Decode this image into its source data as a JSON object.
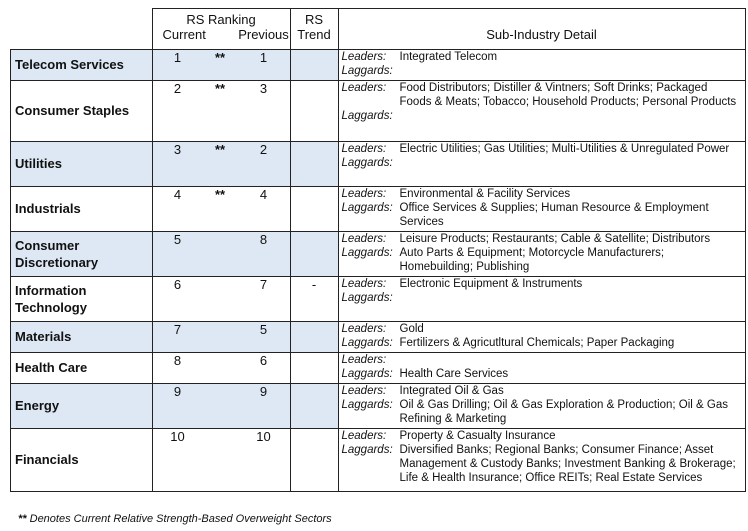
{
  "header": {
    "rs_ranking": "RS Ranking",
    "current": "Current",
    "previous": "Previous",
    "rs_trend_1": "RS",
    "rs_trend_2": "Trend",
    "sub_industry": "Sub-Industry Detail"
  },
  "labels": {
    "leaders": "Leaders:",
    "laggards": "Laggards:"
  },
  "rows": [
    {
      "sector": "Telecom Services",
      "current": "1",
      "star": "**",
      "previous": "1",
      "trend": "",
      "leaders": "Integrated Telecom",
      "laggards": ""
    },
    {
      "sector": "Consumer Staples",
      "current": "2",
      "star": "**",
      "previous": "3",
      "trend": "",
      "leaders": "Food Distributors; Distiller & Vintners; Soft Drinks; Packaged Foods & Meats; Tobacco; Household Products; Personal Products",
      "laggards": ""
    },
    {
      "sector": "Utilities",
      "current": "3",
      "star": "**",
      "previous": "2",
      "trend": "",
      "leaders": "Electric Utilities; Gas Utilities; Multi-Utilities & Unregulated Power",
      "laggards": ""
    },
    {
      "sector": "Industrials",
      "current": "4",
      "star": "**",
      "previous": "4",
      "trend": "",
      "leaders": "Environmental & Facility Services",
      "laggards": "Office Services & Supplies; Human Resource & Employment Services"
    },
    {
      "sector": "Consumer Discretionary",
      "current": "5",
      "star": "",
      "previous": "8",
      "trend": "",
      "leaders": "Leisure Products; Restaurants; Cable & Satellite; Distributors",
      "laggards": "Auto Parts & Equipment; Motorcycle Manufacturers; Homebuilding; Publishing"
    },
    {
      "sector": "Information Technology",
      "current": "6",
      "star": "",
      "previous": "7",
      "trend": "-",
      "leaders": "Electronic Equipment & Instruments",
      "laggards": ""
    },
    {
      "sector": "Materials",
      "current": "7",
      "star": "",
      "previous": "5",
      "trend": "",
      "leaders": "Gold",
      "laggards": "Fertilizers & Agricutltural Chemicals; Paper Packaging"
    },
    {
      "sector": "Health Care",
      "current": "8",
      "star": "",
      "previous": "6",
      "trend": "",
      "leaders": "",
      "laggards": "Health Care Services"
    },
    {
      "sector": "Energy",
      "current": "9",
      "star": "",
      "previous": "9",
      "trend": "",
      "leaders": "Integrated Oil & Gas",
      "laggards": "Oil & Gas Drilling; Oil & Gas Exploration & Production; Oil & Gas Refining & Marketing"
    },
    {
      "sector": "Financials",
      "current": "10",
      "star": "",
      "previous": "10",
      "trend": "",
      "leaders": "Property & Casualty Insurance",
      "laggards": "Diversified Banks; Regional Banks; Consumer Finance; Asset Management & Custody Banks; Investment Banking & Brokerage; Life & Health Insurance; Office REITs; Real Estate Services"
    }
  ],
  "footnote": {
    "stars": "**",
    "text": " Denotes Current Relative Strength-Based Overweight Sectors"
  }
}
